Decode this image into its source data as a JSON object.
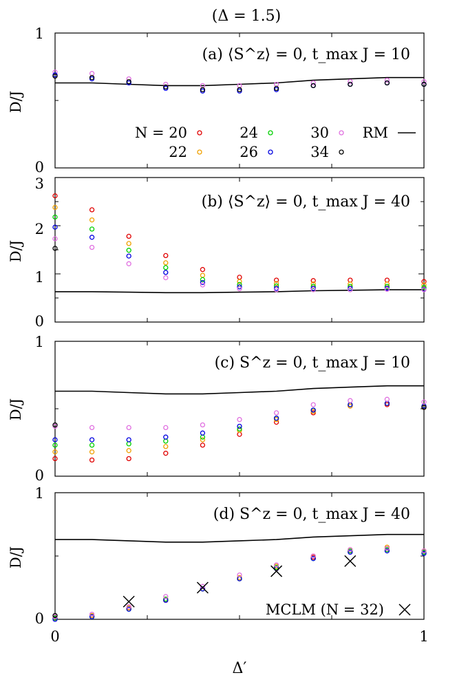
{
  "figure_title": "(Δ = 1.5)",
  "xlabel": "Δ′",
  "xticks": [
    "0",
    "1"
  ],
  "legend": {
    "items": [
      {
        "label": "N = 20",
        "color": "#e00000"
      },
      {
        "label": "22",
        "color": "#f0a000"
      },
      {
        "label": "24",
        "color": "#e00000"
      },
      {
        "label": "26",
        "color": "#0000e0"
      },
      {
        "label": "30",
        "color": "#00d000"
      },
      {
        "label": "34",
        "color": "#000000"
      }
    ],
    "rm_label": "RM",
    "pink_label": "",
    "colors": {
      "N20": "#e00000",
      "N22": "#f0a000",
      "N24": "#ff6a00",
      "N26": "#0000e0",
      "N30": "#00d000",
      "N34": "#000000",
      "pink": "#e070e0",
      "RM": "#000000"
    }
  },
  "chart_data": [
    {
      "type": "scatter",
      "panel": "a",
      "annotation": "(a) ⟨S^z⟩ = 0, t_max J = 10",
      "ylabel": "D/J",
      "yticks": [
        "0",
        "1"
      ],
      "ylim": [
        0,
        1
      ],
      "xlim": [
        0,
        1
      ],
      "x": [
        0,
        0.1,
        0.2,
        0.3,
        0.4,
        0.5,
        0.6,
        0.7,
        0.8,
        0.9,
        1.0
      ],
      "rm_line": [
        0.63,
        0.63,
        0.62,
        0.61,
        0.61,
        0.62,
        0.63,
        0.65,
        0.66,
        0.67,
        0.67
      ],
      "series": [
        {
          "name": "pink",
          "values": [
            0.71,
            0.7,
            0.66,
            0.62,
            0.61,
            0.61,
            0.62,
            0.63,
            0.64,
            0.65,
            0.64
          ]
        },
        {
          "name": "26",
          "values": [
            0.69,
            0.66,
            0.63,
            0.59,
            0.57,
            0.57,
            0.58,
            0.61,
            0.62,
            0.63,
            0.62
          ]
        },
        {
          "name": "34",
          "values": [
            0.68,
            0.67,
            0.64,
            0.6,
            0.58,
            0.58,
            0.59,
            0.61,
            0.62,
            0.63,
            0.62
          ]
        }
      ]
    },
    {
      "type": "scatter",
      "panel": "b",
      "annotation": "(b) ⟨S^z⟩ = 0, t_max J = 40",
      "ylabel": "D/J",
      "yticks": [
        "0",
        "1",
        "2",
        "3"
      ],
      "ylim": [
        0,
        3
      ],
      "xlim": [
        0,
        1
      ],
      "x": [
        0,
        0.1,
        0.2,
        0.3,
        0.4,
        0.5,
        0.6,
        0.7,
        0.8,
        0.9,
        1.0
      ],
      "rm_line": [
        0.63,
        0.63,
        0.62,
        0.61,
        0.61,
        0.62,
        0.63,
        0.65,
        0.66,
        0.67,
        0.67
      ],
      "series": [
        {
          "name": "20",
          "values": [
            2.62,
            2.33,
            1.78,
            1.38,
            1.09,
            0.93,
            0.87,
            0.86,
            0.87,
            0.87,
            0.84
          ]
        },
        {
          "name": "22",
          "values": [
            2.38,
            2.12,
            1.63,
            1.23,
            0.97,
            0.84,
            0.8,
            0.79,
            0.79,
            0.79,
            0.77
          ]
        },
        {
          "name": "30",
          "values": [
            2.18,
            1.93,
            1.49,
            1.13,
            0.88,
            0.78,
            0.75,
            0.74,
            0.74,
            0.74,
            0.72
          ]
        },
        {
          "name": "26",
          "values": [
            1.97,
            1.76,
            1.37,
            1.03,
            0.82,
            0.73,
            0.7,
            0.7,
            0.7,
            0.7,
            0.68
          ]
        },
        {
          "name": "pink",
          "values": [
            1.73,
            1.55,
            1.21,
            0.92,
            0.77,
            0.69,
            0.67,
            0.67,
            0.67,
            0.68,
            0.67
          ]
        },
        {
          "name": "34",
          "values": [
            1.53,
            null,
            null,
            null,
            null,
            null,
            null,
            null,
            null,
            null,
            null
          ]
        }
      ]
    },
    {
      "type": "scatter",
      "panel": "c",
      "annotation": "(c) S^z = 0, t_max J = 10",
      "ylabel": "D/J",
      "yticks": [
        "0",
        "1"
      ],
      "ylim": [
        0,
        1
      ],
      "xlim": [
        0,
        1
      ],
      "x": [
        0,
        0.1,
        0.2,
        0.3,
        0.4,
        0.5,
        0.6,
        0.7,
        0.8,
        0.9,
        1.0
      ],
      "rm_line": [
        0.63,
        0.63,
        0.62,
        0.61,
        0.61,
        0.62,
        0.63,
        0.65,
        0.66,
        0.67,
        0.67
      ],
      "series": [
        {
          "name": "20",
          "values": [
            0.13,
            0.12,
            0.13,
            0.17,
            0.23,
            0.31,
            0.4,
            0.47,
            0.52,
            0.53,
            0.51
          ]
        },
        {
          "name": "22",
          "values": [
            0.18,
            0.18,
            0.19,
            0.22,
            0.27,
            0.34,
            0.42,
            0.48,
            0.52,
            0.54,
            0.51
          ]
        },
        {
          "name": "30",
          "values": [
            0.23,
            0.23,
            0.24,
            0.26,
            0.29,
            0.35,
            0.43,
            0.49,
            0.53,
            0.54,
            0.52
          ]
        },
        {
          "name": "26",
          "values": [
            0.27,
            0.27,
            0.27,
            0.29,
            0.32,
            0.37,
            0.43,
            0.49,
            0.53,
            0.54,
            0.52
          ]
        },
        {
          "name": "pink",
          "values": [
            0.37,
            0.36,
            0.36,
            0.36,
            0.38,
            0.42,
            0.47,
            0.53,
            0.56,
            0.57,
            0.55
          ]
        },
        {
          "name": "34",
          "values": [
            0.38,
            null,
            null,
            null,
            null,
            null,
            null,
            null,
            null,
            null,
            0.51
          ]
        }
      ]
    },
    {
      "type": "scatter",
      "panel": "d",
      "annotation": "(d) S^z = 0, t_max J = 40",
      "ylabel": "D/J",
      "yticks": [
        "0",
        "1"
      ],
      "ylim": [
        0,
        1
      ],
      "xlim": [
        0,
        1
      ],
      "x": [
        0,
        0.1,
        0.2,
        0.3,
        0.4,
        0.5,
        0.6,
        0.7,
        0.8,
        0.9,
        1.0
      ],
      "rm_line": [
        0.63,
        0.63,
        0.62,
        0.61,
        0.61,
        0.62,
        0.63,
        0.65,
        0.66,
        0.67,
        0.67
      ],
      "series": [
        {
          "name": "20",
          "values": [
            0.01,
            0.03,
            0.09,
            0.15,
            0.24,
            0.32,
            0.41,
            0.49,
            0.54,
            0.56,
            0.54
          ]
        },
        {
          "name": "22",
          "values": [
            0.01,
            0.03,
            0.09,
            0.16,
            0.24,
            0.33,
            0.42,
            0.5,
            0.55,
            0.57,
            0.54
          ]
        },
        {
          "name": "30",
          "values": [
            0.01,
            0.02,
            0.08,
            0.16,
            0.24,
            0.32,
            0.41,
            0.48,
            0.54,
            0.55,
            0.53
          ]
        },
        {
          "name": "26",
          "values": [
            0.0,
            0.02,
            0.08,
            0.15,
            0.24,
            0.32,
            0.4,
            0.48,
            0.53,
            0.54,
            0.52
          ]
        },
        {
          "name": "pink",
          "values": [
            0.02,
            0.04,
            0.1,
            0.18,
            0.26,
            0.35,
            0.43,
            0.5,
            0.55,
            0.56,
            0.54
          ]
        },
        {
          "name": "34",
          "values": [
            0.03,
            null,
            null,
            null,
            null,
            null,
            null,
            null,
            null,
            null,
            null
          ]
        }
      ],
      "mclm": {
        "label": "MCLM (N = 32)",
        "x": [
          0.2,
          0.4,
          0.6,
          0.8
        ],
        "y": [
          0.14,
          0.25,
          0.38,
          0.46
        ]
      }
    }
  ]
}
